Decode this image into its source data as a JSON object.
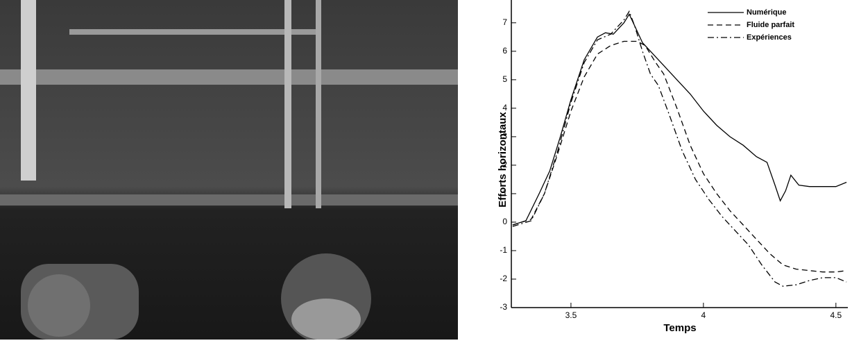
{
  "chart_data": {
    "type": "line",
    "xlabel": "Temps",
    "ylabel": "Efforts horizontaux",
    "xlim": [
      3.275,
      4.545
    ],
    "ylim": [
      -3,
      7.8
    ],
    "xticks": [
      3.5,
      4,
      4.5
    ],
    "yticks": [
      -3,
      -2,
      -1,
      0,
      1,
      2,
      3,
      4,
      5,
      6,
      7
    ],
    "legend": "top-right",
    "series": [
      {
        "name": "Numérique",
        "color": "#000000",
        "dash": "solid",
        "x": [
          3.28,
          3.33,
          3.38,
          3.42,
          3.46,
          3.5,
          3.55,
          3.6,
          3.63,
          3.66,
          3.7,
          3.72,
          3.74,
          3.77,
          3.8,
          3.85,
          3.9,
          3.95,
          4.0,
          4.05,
          4.1,
          4.15,
          4.2,
          4.24,
          4.27,
          4.29,
          4.31,
          4.33,
          4.36,
          4.4,
          4.45,
          4.5,
          4.54
        ],
        "values": [
          -0.1,
          0.05,
          1.0,
          1.8,
          3.0,
          4.3,
          5.7,
          6.5,
          6.65,
          6.6,
          7.0,
          7.3,
          6.9,
          6.3,
          6.0,
          5.5,
          5.0,
          4.5,
          3.9,
          3.4,
          3.0,
          2.7,
          2.3,
          2.1,
          1.3,
          0.75,
          1.1,
          1.65,
          1.3,
          1.25,
          1.25,
          1.25,
          1.4
        ]
      },
      {
        "name": "Fluide parfait",
        "color": "#000000",
        "dash": "dashed",
        "x": [
          3.28,
          3.35,
          3.4,
          3.45,
          3.5,
          3.55,
          3.6,
          3.65,
          3.7,
          3.75,
          3.78,
          3.82,
          3.85,
          3.9,
          3.95,
          4.0,
          4.05,
          4.1,
          4.15,
          4.2,
          4.25,
          4.3,
          4.35,
          4.4,
          4.45,
          4.5,
          4.54
        ],
        "values": [
          -0.1,
          0.1,
          1.0,
          2.4,
          3.9,
          5.1,
          5.9,
          6.2,
          6.35,
          6.35,
          6.2,
          5.6,
          5.2,
          4.0,
          2.7,
          1.7,
          1.0,
          0.4,
          -0.1,
          -0.6,
          -1.1,
          -1.5,
          -1.65,
          -1.7,
          -1.75,
          -1.75,
          -1.7
        ]
      },
      {
        "name": "Expériences",
        "color": "#000000",
        "dash": "dashdot",
        "x": [
          3.28,
          3.35,
          3.4,
          3.45,
          3.5,
          3.55,
          3.6,
          3.65,
          3.7,
          3.72,
          3.74,
          3.77,
          3.8,
          3.83,
          3.87,
          3.92,
          3.97,
          4.02,
          4.07,
          4.12,
          4.17,
          4.22,
          4.27,
          4.3,
          4.35,
          4.4,
          4.45,
          4.5,
          4.54
        ],
        "values": [
          -0.15,
          0.05,
          1.0,
          2.5,
          4.2,
          5.6,
          6.4,
          6.6,
          7.1,
          7.4,
          6.9,
          6.0,
          5.2,
          4.8,
          3.8,
          2.5,
          1.5,
          0.8,
          0.2,
          -0.3,
          -0.8,
          -1.5,
          -2.1,
          -2.25,
          -2.2,
          -2.05,
          -1.95,
          -1.95,
          -2.1
        ]
      }
    ]
  }
}
